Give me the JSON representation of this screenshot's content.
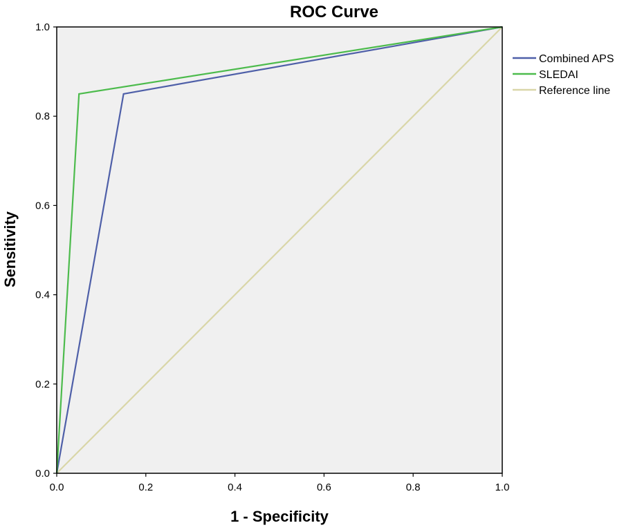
{
  "chart_data": {
    "type": "line",
    "title": "ROC Curve",
    "xlabel": "1 - Specificity",
    "ylabel": "Sensitivity",
    "xlim": [
      0,
      1
    ],
    "ylim": [
      0,
      1
    ],
    "x_ticks": [
      "0.0",
      "0.2",
      "0.4",
      "0.6",
      "0.8",
      "1.0"
    ],
    "y_ticks": [
      "0.0",
      "0.2",
      "0.4",
      "0.6",
      "0.8",
      "1.0"
    ],
    "grid": false,
    "legend_position": "right",
    "plot_background": "#f0f0f0",
    "series": [
      {
        "name": "Combined APS",
        "color": "#4e5fa8",
        "x": [
          0,
          0.15,
          1
        ],
        "y": [
          0,
          0.85,
          1
        ]
      },
      {
        "name": "SLEDAI",
        "color": "#4cbb4c",
        "x": [
          0,
          0.05,
          1
        ],
        "y": [
          0,
          0.85,
          1
        ]
      },
      {
        "name": "Reference line",
        "color": "#d9d6a8",
        "x": [
          0,
          1
        ],
        "y": [
          0,
          1
        ]
      }
    ]
  }
}
